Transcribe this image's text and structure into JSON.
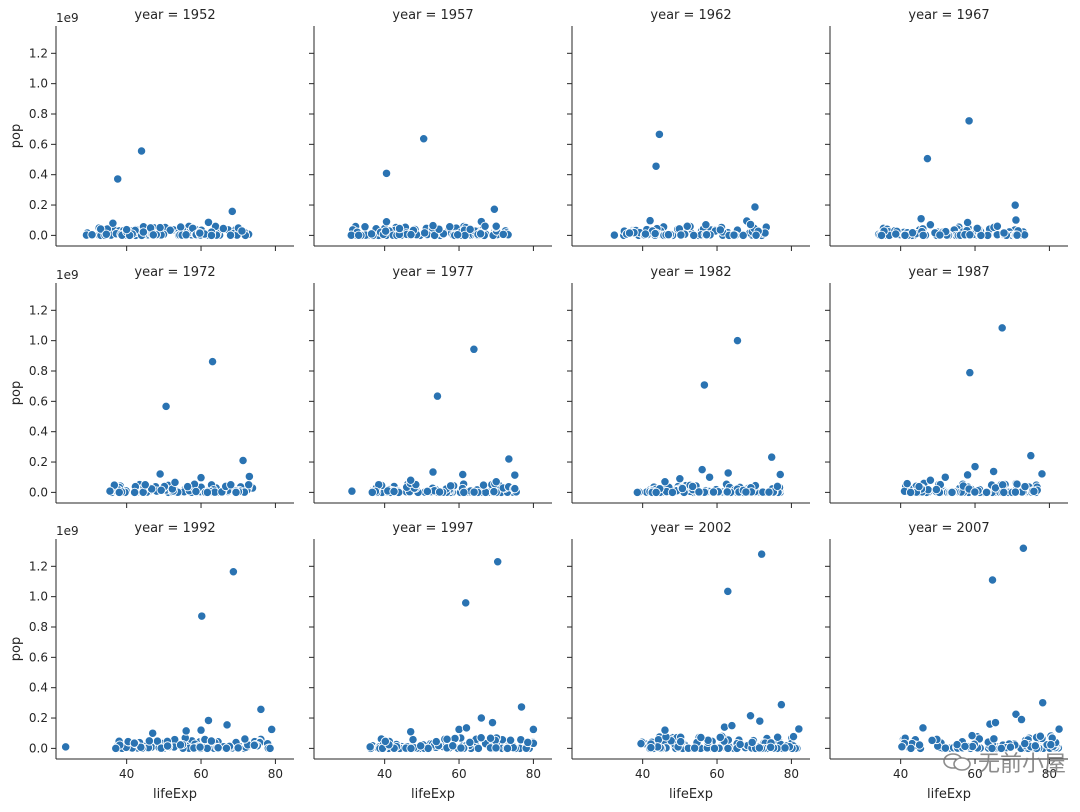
{
  "chart_data": {
    "type": "scatter",
    "xlabel": "lifeExp",
    "ylabel": "pop",
    "y_offset_label": "1e9",
    "xlim": [
      21,
      85
    ],
    "ylim": [
      -0.07,
      1.38
    ],
    "xticks": [
      40,
      60,
      80
    ],
    "yticks": [
      0.0,
      0.2,
      0.4,
      0.6,
      0.8,
      1.0,
      1.2
    ],
    "ytick_labels": [
      "0.0",
      "0.2",
      "0.4",
      "0.6",
      "0.8",
      "1.0",
      "1.2"
    ],
    "color": "#2a73b2",
    "grid": false,
    "legend": "none",
    "facets": [
      {
        "title": "year = 1952",
        "outliers": [
          [
            37.6,
            0.372
          ],
          [
            44.0,
            0.556
          ],
          [
            68.4,
            0.158
          ],
          [
            36.3,
            0.08
          ],
          [
            62.0,
            0.086
          ],
          [
            49.0,
            0.051
          ],
          [
            66.0,
            0.045
          ],
          [
            40.0,
            0.038
          ],
          [
            44.5,
            0.022
          ],
          [
            71.0,
            0.029
          ]
        ],
        "x_range": [
          28.8,
          73.0
        ],
        "cluster_max": 0.06
      },
      {
        "title": "year = 1957",
        "outliers": [
          [
            40.5,
            0.409
          ],
          [
            50.5,
            0.637
          ],
          [
            69.5,
            0.172
          ],
          [
            40.5,
            0.09
          ],
          [
            66.0,
            0.091
          ],
          [
            53.0,
            0.064
          ],
          [
            67.0,
            0.06
          ],
          [
            44.0,
            0.045
          ],
          [
            70.0,
            0.06
          ]
        ],
        "x_range": [
          30.3,
          73.5
        ],
        "cluster_max": 0.06
      },
      {
        "title": "year = 1962",
        "outliers": [
          [
            43.6,
            0.456
          ],
          [
            44.5,
            0.666
          ],
          [
            70.2,
            0.187
          ],
          [
            42.0,
            0.097
          ],
          [
            68.0,
            0.095
          ],
          [
            57.0,
            0.07
          ],
          [
            69.0,
            0.072
          ],
          [
            52.0,
            0.06
          ]
        ],
        "x_range": [
          32.0,
          73.7
        ],
        "cluster_max": 0.06
      },
      {
        "title": "year = 1967",
        "outliers": [
          [
            47.2,
            0.506
          ],
          [
            58.4,
            0.755
          ],
          [
            70.8,
            0.199
          ],
          [
            45.5,
            0.11
          ],
          [
            71.0,
            0.101
          ],
          [
            58.0,
            0.085
          ],
          [
            48.0,
            0.07
          ],
          [
            66.0,
            0.06
          ]
        ],
        "x_range": [
          34.0,
          74.2
        ],
        "cluster_max": 0.06
      },
      {
        "title": "year = 1972",
        "outliers": [
          [
            50.6,
            0.567
          ],
          [
            63.1,
            0.862
          ],
          [
            71.3,
            0.21
          ],
          [
            49.0,
            0.121
          ],
          [
            60.0,
            0.097
          ],
          [
            73.0,
            0.105
          ],
          [
            53.0,
            0.066
          ],
          [
            45.0,
            0.05
          ],
          [
            68.0,
            0.05
          ]
        ],
        "x_range": [
          35.4,
          74.0
        ],
        "cluster_max": 0.06
      },
      {
        "title": "year = 1977",
        "outliers": [
          [
            54.2,
            0.634
          ],
          [
            64.0,
            0.943
          ],
          [
            73.4,
            0.22
          ],
          [
            53.0,
            0.134
          ],
          [
            61.0,
            0.118
          ],
          [
            75.0,
            0.114
          ],
          [
            47.0,
            0.08
          ],
          [
            31.2,
            0.008
          ],
          [
            70.0,
            0.07
          ]
        ],
        "x_range": [
          36.1,
          76.0
        ],
        "cluster_max": 0.06
      },
      {
        "title": "year = 1982",
        "outliers": [
          [
            56.6,
            0.708
          ],
          [
            65.5,
            1.0
          ],
          [
            74.7,
            0.232
          ],
          [
            56.0,
            0.15
          ],
          [
            63.0,
            0.128
          ],
          [
            77.0,
            0.118
          ],
          [
            50.0,
            0.09
          ],
          [
            58.0,
            0.1
          ],
          [
            46.0,
            0.07
          ]
        ],
        "x_range": [
          38.4,
          77.0
        ],
        "cluster_max": 0.06
      },
      {
        "title": "year = 1987",
        "outliers": [
          [
            58.6,
            0.789
          ],
          [
            67.3,
            1.084
          ],
          [
            75.0,
            0.242
          ],
          [
            60.0,
            0.17
          ],
          [
            65.0,
            0.138
          ],
          [
            78.0,
            0.122
          ],
          [
            52.0,
            0.1
          ],
          [
            58.0,
            0.115
          ],
          [
            48.0,
            0.08
          ]
        ],
        "x_range": [
          39.9,
          77.8
        ],
        "cluster_max": 0.06
      },
      {
        "title": "year = 1992",
        "outliers": [
          [
            60.2,
            0.872
          ],
          [
            68.7,
            1.164
          ],
          [
            76.1,
            0.257
          ],
          [
            62.0,
            0.184
          ],
          [
            67.0,
            0.155
          ],
          [
            79.0,
            0.125
          ],
          [
            56.0,
            0.115
          ],
          [
            60.0,
            0.12
          ],
          [
            47.0,
            0.1
          ],
          [
            23.6,
            0.01
          ]
        ],
        "x_range": [
          37.0,
          79.0
        ],
        "cluster_max": 0.07
      },
      {
        "title": "year = 1997",
        "outliers": [
          [
            61.8,
            0.959
          ],
          [
            70.4,
            1.23
          ],
          [
            76.8,
            0.273
          ],
          [
            66.0,
            0.2
          ],
          [
            69.0,
            0.17
          ],
          [
            80.0,
            0.125
          ],
          [
            60.0,
            0.125
          ],
          [
            62.0,
            0.135
          ],
          [
            47.0,
            0.11
          ],
          [
            36.1,
            0.01
          ]
        ],
        "x_range": [
          36.1,
          80.7
        ],
        "cluster_max": 0.07
      },
      {
        "title": "year = 2002",
        "outliers": [
          [
            62.9,
            1.035
          ],
          [
            72.0,
            1.28
          ],
          [
            77.3,
            0.288
          ],
          [
            69.0,
            0.215
          ],
          [
            71.5,
            0.18
          ],
          [
            82.0,
            0.128
          ],
          [
            62.0,
            0.14
          ],
          [
            64.0,
            0.15
          ],
          [
            46.0,
            0.12
          ]
        ],
        "x_range": [
          39.2,
          82.0
        ],
        "cluster_max": 0.08
      },
      {
        "title": "year = 2007",
        "outliers": [
          [
            64.7,
            1.11
          ],
          [
            73.0,
            1.319
          ],
          [
            78.2,
            0.301
          ],
          [
            71.0,
            0.225
          ],
          [
            72.5,
            0.19
          ],
          [
            82.6,
            0.127
          ],
          [
            64.0,
            0.16
          ],
          [
            65.5,
            0.17
          ],
          [
            46.0,
            0.135
          ]
        ],
        "x_range": [
          39.6,
          82.6
        ],
        "cluster_max": 0.09
      }
    ]
  },
  "watermark": "无前小屋"
}
